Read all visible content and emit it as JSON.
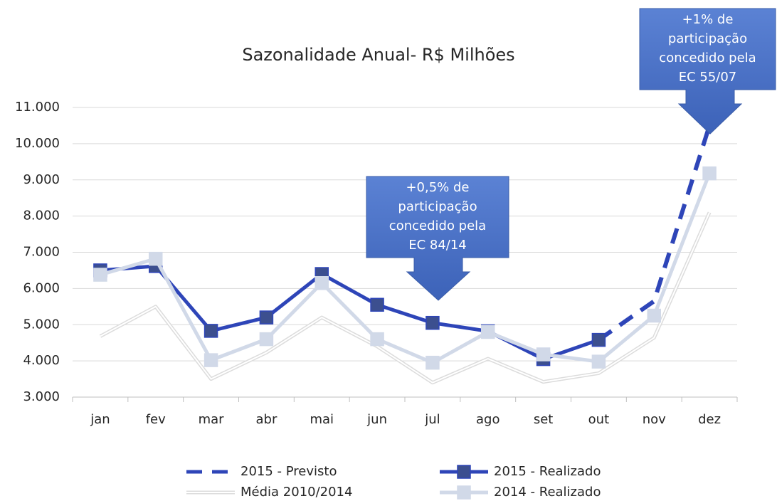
{
  "chart_data": {
    "type": "line",
    "title": "Sazonalidade Anual- R$ Milhões",
    "categories": [
      "jan",
      "fev",
      "mar",
      "abr",
      "mai",
      "jun",
      "jul",
      "ago",
      "set",
      "out",
      "nov",
      "dez"
    ],
    "ylim": [
      3000,
      11000
    ],
    "yticks": [
      {
        "value": 3000,
        "label": "3.000"
      },
      {
        "value": 4000,
        "label": "4.000"
      },
      {
        "value": 5000,
        "label": "5.000"
      },
      {
        "value": 6000,
        "label": "6.000"
      },
      {
        "value": 7000,
        "label": "7.000"
      },
      {
        "value": 8000,
        "label": "8.000"
      },
      {
        "value": 9000,
        "label": "9.000"
      },
      {
        "value": 10000,
        "label": "10.000"
      },
      {
        "value": 11000,
        "label": "11.000"
      }
    ],
    "grid": true,
    "legend": "bottom",
    "series": [
      {
        "name": "2015 - Previsto",
        "color": "#2e45b8",
        "line_style": "dashed",
        "values": [
          null,
          null,
          null,
          null,
          null,
          null,
          null,
          null,
          null,
          4580,
          5650,
          10500
        ]
      },
      {
        "name": "2015 - Realizado",
        "color": "#2e45b8",
        "line_style": "solid",
        "marker": "square",
        "marker_color": "#3c4f8f",
        "values": [
          6500,
          6620,
          4830,
          5200,
          6400,
          5550,
          5050,
          4820,
          4050,
          4580,
          null,
          null
        ]
      },
      {
        "name": "Média 2010/2014",
        "color": "#dcdcdc",
        "line_style": "double",
        "values": [
          4680,
          5500,
          3500,
          4230,
          5200,
          4400,
          3400,
          4060,
          3420,
          3660,
          4640,
          8100
        ]
      },
      {
        "name": "2014 - Realizado",
        "color": "#d1d9e8",
        "line_style": "solid",
        "marker": "square",
        "marker_color": "#d1d9e8",
        "values": [
          6380,
          6820,
          4020,
          4600,
          6150,
          4600,
          3950,
          4800,
          4180,
          3980,
          5250,
          9180
        ]
      }
    ],
    "annotations": [
      {
        "lines": [
          "+0,5% de",
          "participação",
          "concedido pela",
          "EC 84/14"
        ]
      },
      {
        "lines": [
          "+1% de",
          "participação",
          "concedido pela",
          "EC 55/07"
        ]
      }
    ]
  }
}
